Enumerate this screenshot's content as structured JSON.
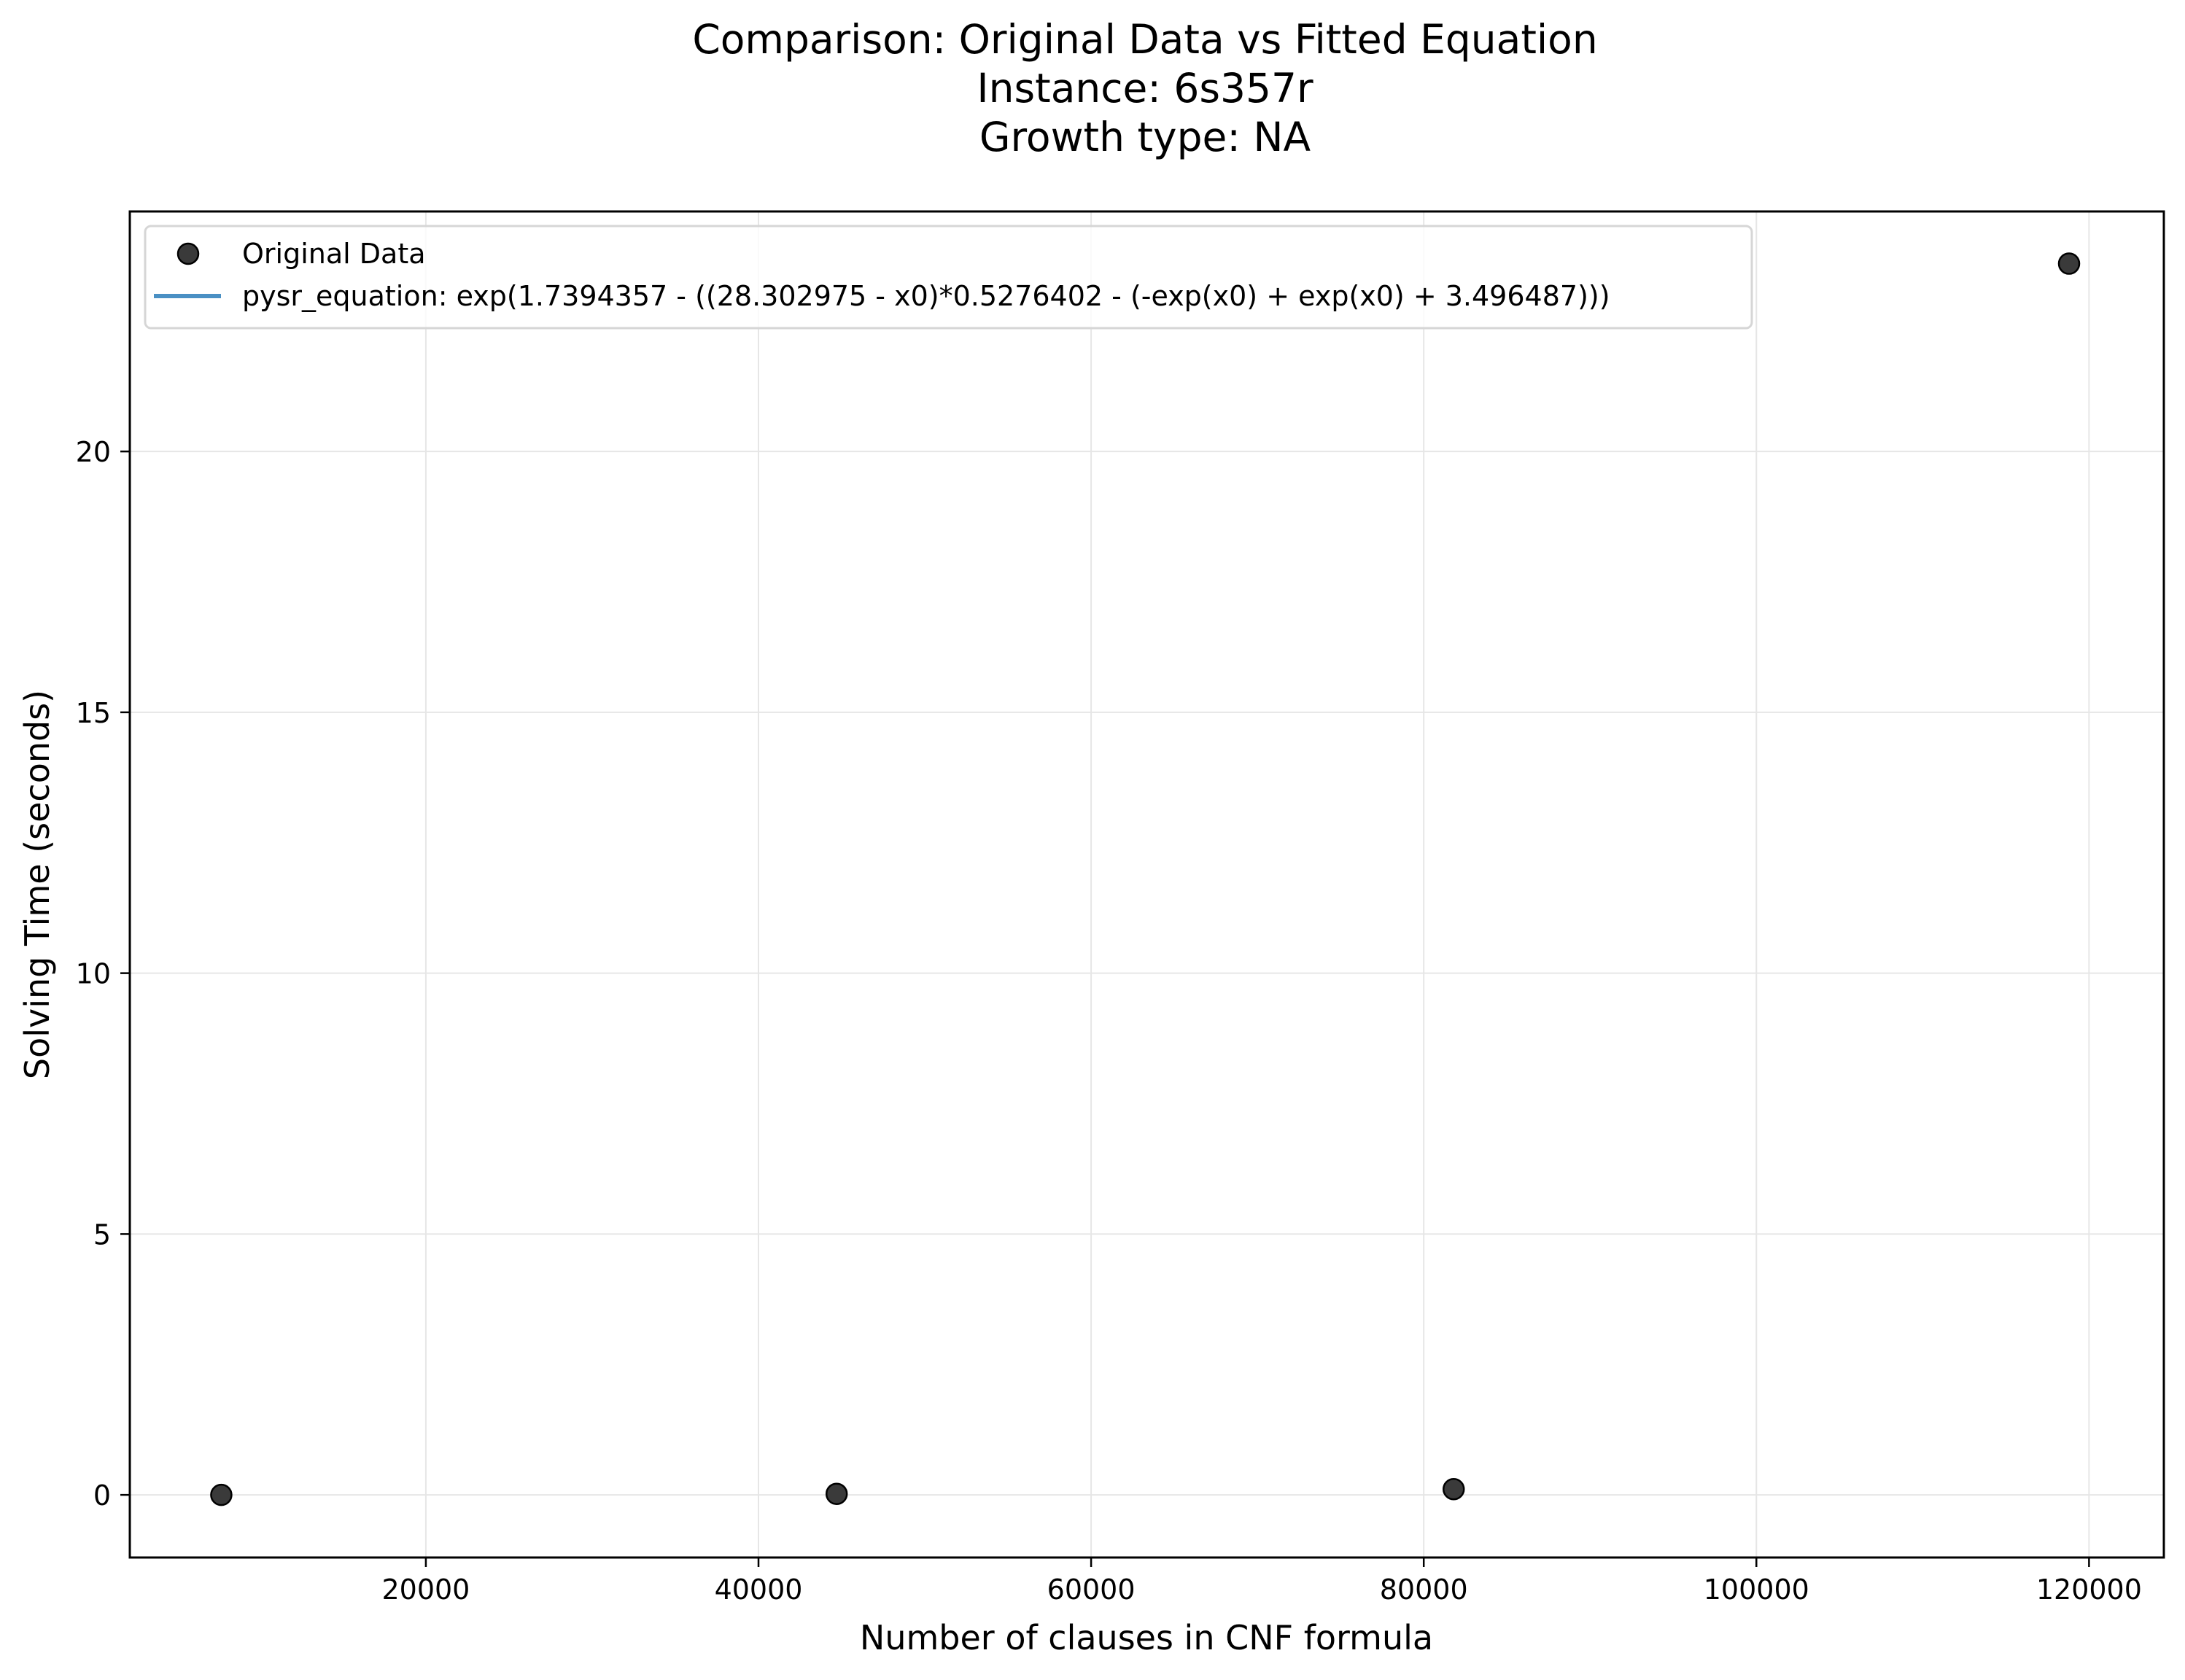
{
  "chart_data": {
    "type": "scatter",
    "title_lines": [
      "Comparison: Original Data vs Fitted Equation",
      "Instance: 6s357r",
      "Growth type: NA"
    ],
    "xlabel": "Number of clauses in CNF formula",
    "ylabel": "Solving Time (seconds)",
    "xlim": [
      2200,
      124500
    ],
    "ylim": [
      -1.2,
      24.6
    ],
    "xticks": [
      20000,
      40000,
      60000,
      80000,
      100000,
      120000
    ],
    "xtick_labels": [
      "20000",
      "40000",
      "60000",
      "80000",
      "100000",
      "120000"
    ],
    "yticks": [
      0,
      5,
      10,
      15,
      20
    ],
    "ytick_labels": [
      "0",
      "5",
      "10",
      "15",
      "20"
    ],
    "grid": true,
    "legend_position": "upper-left",
    "series": [
      {
        "name": "Original Data",
        "kind": "scatter",
        "color": "#3a3a3a",
        "edge_color": "#000000",
        "x": [
          7700,
          44700,
          81800,
          118800
        ],
        "y": [
          0.0,
          0.02,
          0.11,
          23.6
        ]
      },
      {
        "name": "pysr_equation: exp(1.7394357 - ((28.302975 - x0)*0.5276402 - (-exp(x0) + exp(x0) + 3.496487)))",
        "kind": "line",
        "color": "#4a90c4",
        "x": [],
        "y": []
      }
    ]
  }
}
